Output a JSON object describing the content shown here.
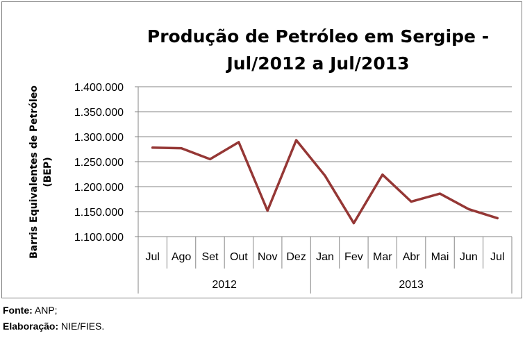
{
  "chart_data": {
    "type": "line",
    "title_lines": [
      "Produção de Petróleo em Sergipe -",
      "Jul/2012 a Jul/2013"
    ],
    "ylabel_lines": [
      "Barris Equivalentes de Petróleo",
      "(BEP)"
    ],
    "categories": [
      "Jul",
      "Ago",
      "Set",
      "Out",
      "Nov",
      "Dez",
      "Jan",
      "Fev",
      "Mar",
      "Abr",
      "Mai",
      "Jun",
      "Jul"
    ],
    "year_groups": [
      {
        "label": "2012",
        "count": 6
      },
      {
        "label": "2013",
        "count": 7
      }
    ],
    "series": [
      {
        "values": [
          1278000,
          1277000,
          1255000,
          1289000,
          1152000,
          1293000,
          1222000,
          1127000,
          1224000,
          1170000,
          1186000,
          1155000,
          1137000
        ]
      }
    ],
    "ylim": [
      1100000,
      1400000
    ],
    "yticks": [
      1100000,
      1150000,
      1200000,
      1250000,
      1300000,
      1350000,
      1400000
    ],
    "ytick_labels": [
      "1.100.000",
      "1.150.000",
      "1.200.000",
      "1.250.000",
      "1.300.000",
      "1.350.000",
      "1.400.000"
    ],
    "line_color": "#953735",
    "grid": true
  },
  "footer": {
    "source_key": "Fonte:",
    "source_value": " ANP;",
    "prep_key": "Elaboração:",
    "prep_value": " NIE/FIES."
  }
}
